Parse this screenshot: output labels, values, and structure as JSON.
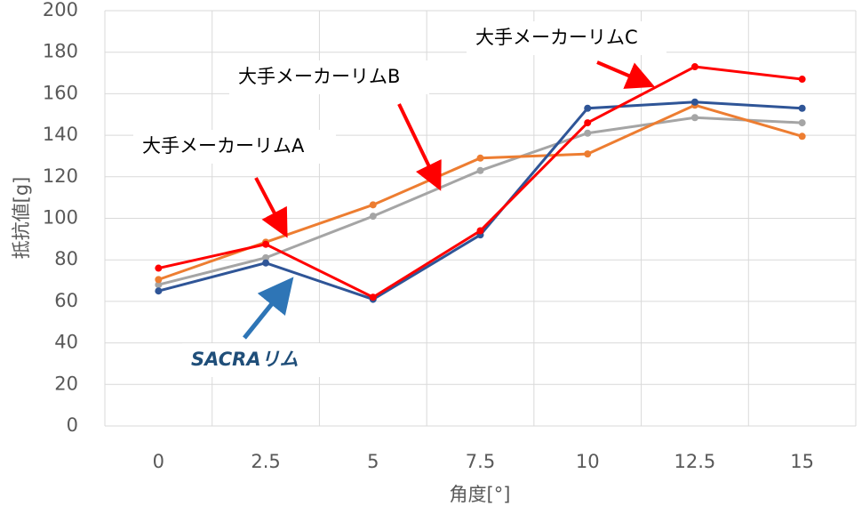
{
  "chart_data": {
    "type": "line",
    "categories": [
      "0",
      "2.5",
      "5",
      "7.5",
      "10",
      "12.5",
      "15"
    ],
    "series": [
      {
        "color": "#a5a5a5",
        "values": [
          68,
          81,
          101,
          123,
          141,
          148.5,
          146
        ]
      },
      {
        "color": "#ed7d31",
        "values": [
          70.5,
          88.5,
          106.5,
          129,
          131,
          154.5,
          139.5
        ]
      },
      {
        "color": "#2f5597",
        "values": [
          65,
          78.5,
          61,
          92,
          153,
          156,
          153
        ]
      },
      {
        "color": "#ff0000",
        "values": [
          76,
          87.5,
          62,
          94,
          146,
          173,
          167
        ]
      }
    ],
    "ylim": [
      0,
      200
    ],
    "yticks": [
      0,
      20,
      40,
      60,
      80,
      100,
      120,
      140,
      160,
      180,
      200
    ],
    "grid": true,
    "x_label": "角度[°]",
    "y_label": "抵抗値[g]",
    "annotations": [
      "大手メーカーリムC",
      "大手メーカーリムB",
      "大手メーカーリムA",
      "SACRAリム"
    ]
  }
}
